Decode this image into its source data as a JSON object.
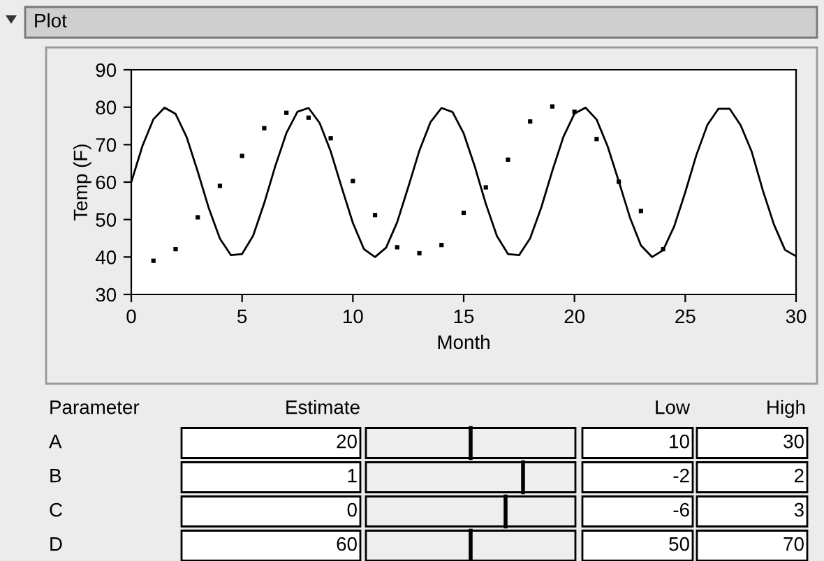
{
  "chart_data": [
    {
      "type": "scatter",
      "title": "Plot",
      "xlabel": "Month",
      "ylabel": "Temp (F)",
      "xlim": [
        0,
        30
      ],
      "xticks": [
        0,
        5,
        10,
        15,
        20,
        25,
        30
      ],
      "ylim": [
        30,
        90
      ],
      "yticks": [
        30,
        40,
        50,
        60,
        70,
        80,
        90
      ],
      "grid": false,
      "legend": false,
      "series": [
        {
          "type": "scatter",
          "color": "#000000",
          "marker": "square",
          "x": [
            1,
            2,
            3,
            4,
            5,
            6,
            7,
            8,
            9,
            10,
            11,
            12,
            13,
            14,
            15,
            16,
            17,
            18,
            19,
            20,
            21,
            22,
            23,
            24
          ],
          "values": [
            39,
            42.1,
            50.6,
            59,
            67,
            74.4,
            78.5,
            77.2,
            71.7,
            60.3,
            51.2,
            42.6,
            41,
            43.2,
            51.8,
            58.6,
            66,
            76.2,
            80.2,
            78.8,
            71.5,
            60.1,
            52.3,
            42.1
          ]
        },
        {
          "type": "line",
          "color": "#000000",
          "marker": "none",
          "line_style": "solid",
          "x": [
            0,
            0.5,
            1,
            1.5,
            2,
            2.5,
            3,
            3.5,
            4,
            4.5,
            5,
            5.5,
            6,
            6.5,
            7,
            7.5,
            8,
            8.5,
            9,
            9.5,
            10,
            10.5,
            11,
            11.5,
            12,
            12.5,
            13,
            13.5,
            14,
            14.5,
            15,
            15.5,
            16,
            16.5,
            17,
            17.5,
            18,
            18.5,
            19,
            19.5,
            20,
            20.5,
            21,
            21.5,
            22,
            22.5,
            23,
            23.5,
            24,
            24.5,
            25,
            25.5,
            26,
            26.5,
            27,
            27.5,
            28,
            28.5,
            29,
            29.5,
            30
          ],
          "values": [
            60,
            69.6,
            76.8,
            79.9,
            78.2,
            72,
            62.8,
            53,
            44.9,
            40.5,
            40.8,
            45.7,
            54.4,
            64.3,
            73.1,
            78.8,
            79.8,
            75.8,
            68.2,
            58.5,
            49.1,
            42.1,
            40,
            42.5,
            49.3,
            58.7,
            68.4,
            76,
            79.8,
            78.7,
            73,
            64.2,
            54.2,
            45.6,
            40.8,
            40.5,
            45,
            53.2,
            63,
            72.1,
            78.3,
            79.9,
            76.7,
            69.5,
            60.2,
            50.6,
            43.1,
            40,
            41.8,
            48.2,
            57.3,
            67.2,
            75.3,
            79.6,
            79.6,
            75.2,
            68.1,
            57.8,
            48.7,
            41.9,
            40.2
          ]
        }
      ]
    },
    {
      "type": "other",
      "data_labels": true,
      "ylabel": "Parameter",
      "categories": [
        "A",
        "B",
        "C",
        "D"
      ],
      "series": [
        {
          "name": "Estimate",
          "values": [
            20,
            1,
            0,
            60
          ]
        },
        {
          "name": "Low",
          "values": [
            10,
            -2,
            -6,
            50
          ]
        },
        {
          "name": "High",
          "values": [
            30,
            2,
            3,
            70
          ]
        }
      ]
    }
  ]
}
